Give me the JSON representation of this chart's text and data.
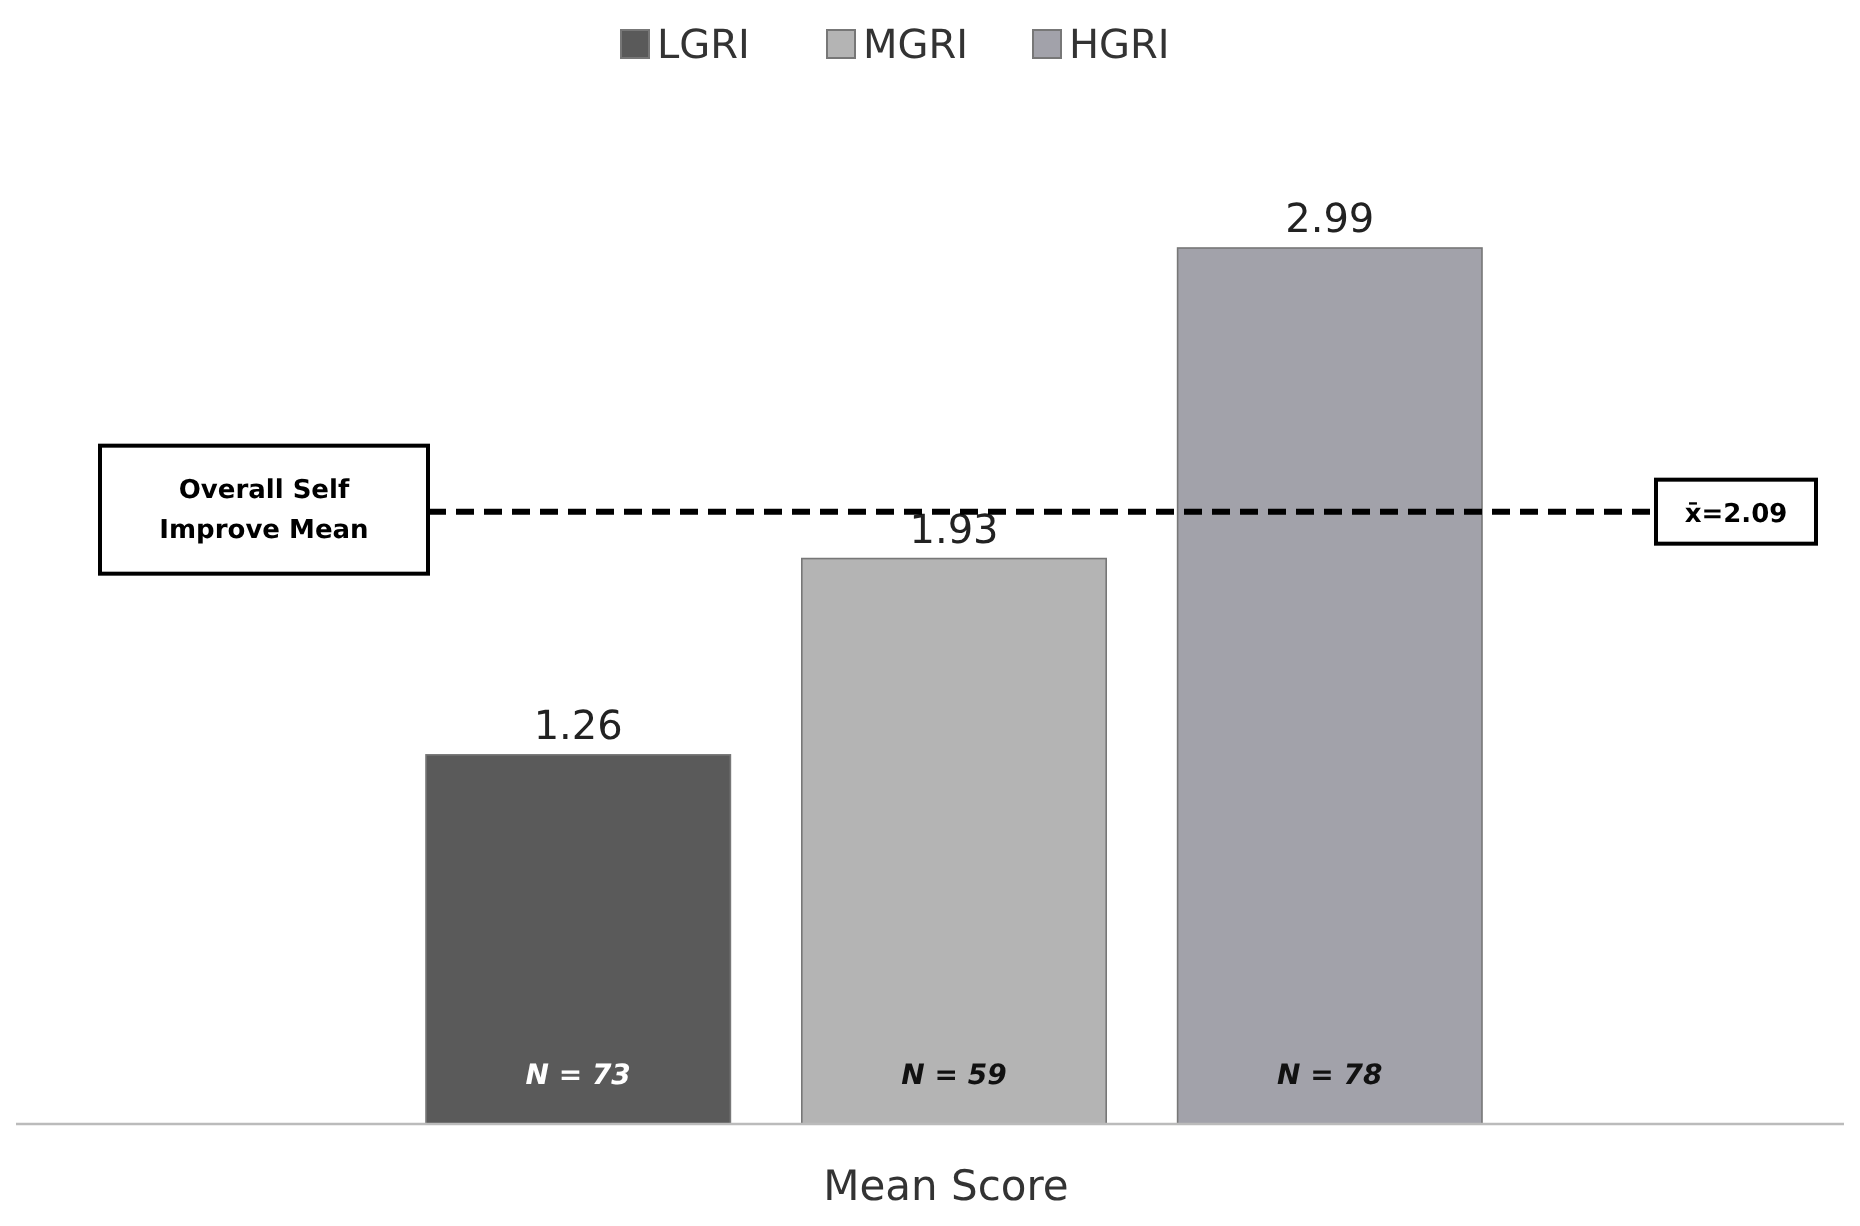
{
  "chart_data": {
    "type": "bar",
    "categories": [
      null
    ],
    "xlabel": "Mean Score",
    "series": [
      {
        "name": "LGRI",
        "color": "#5a5a5a",
        "values": [
          1.26
        ]
      },
      {
        "name": "MGRI",
        "color": "#b4b4b4",
        "values": [
          1.93
        ]
      },
      {
        "name": "HGRI",
        "color": "#a2a2aa",
        "values": [
          2.99
        ]
      }
    ],
    "data_labels": true,
    "legend": "top",
    "ref_lines": [
      {
        "axis": "y",
        "value": 2.09,
        "label": "x̄=2.09",
        "line_style": "dashed",
        "color": "#000000"
      }
    ],
    "annotations": [
      "Overall Self Improve Mean",
      "N = 73",
      "N = 59",
      "N = 78"
    ]
  }
}
